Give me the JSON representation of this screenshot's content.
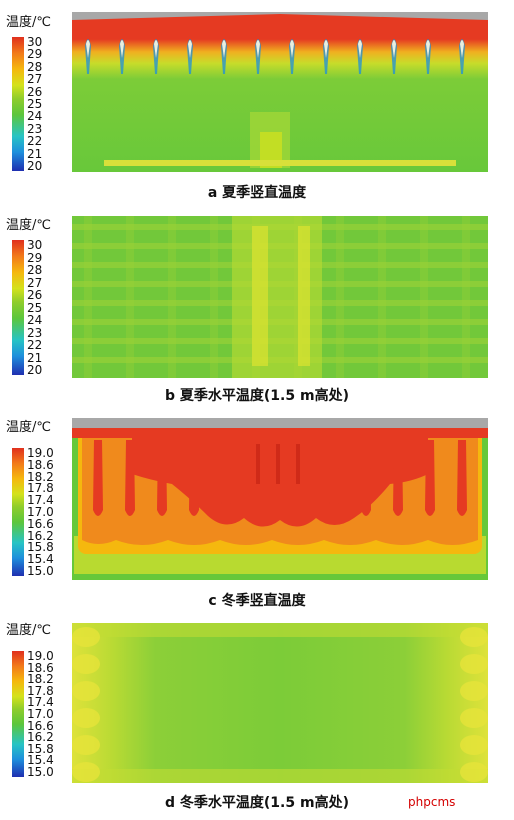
{
  "colors": {
    "scale": [
      "#1f2fb0",
      "#1e8fdc",
      "#27c4c4",
      "#5cc63c",
      "#8fcd2c",
      "#d4e21c",
      "#f5b80e",
      "#f27a1a",
      "#e0301e"
    ],
    "hot": "#e53a22",
    "orange": "#f08a1c",
    "yellow": "#e4e23a",
    "green": "#6ccb38",
    "grey": "#a8a8a8"
  },
  "panels": [
    {
      "unit_label": "温度/℃",
      "ticks": [
        "30",
        "29",
        "28",
        "27",
        "26",
        "25",
        "24",
        "23",
        "22",
        "21",
        "20"
      ],
      "caption": "a 夏季竖直温度",
      "view": "vertical-summer"
    },
    {
      "unit_label": "温度/℃",
      "ticks": [
        "30",
        "29",
        "28",
        "27",
        "26",
        "25",
        "24",
        "23",
        "22",
        "21",
        "20"
      ],
      "caption": "b 夏季水平温度(1.5 m高处)",
      "view": "horizontal-summer"
    },
    {
      "unit_label": "温度/℃",
      "ticks": [
        "19.0",
        "18.6",
        "18.2",
        "17.8",
        "17.4",
        "17.0",
        "16.6",
        "16.2",
        "15.8",
        "15.4",
        "15.0"
      ],
      "caption": "c 冬季竖直温度",
      "view": "vertical-winter"
    },
    {
      "unit_label": "温度/℃",
      "ticks": [
        "19.0",
        "18.6",
        "18.2",
        "17.8",
        "17.4",
        "17.0",
        "16.6",
        "16.2",
        "15.8",
        "15.4",
        "15.0"
      ],
      "caption": "d 冬季水平温度(1.5 m高处)",
      "view": "horizontal-winter"
    }
  ],
  "watermark": "phpcms"
}
